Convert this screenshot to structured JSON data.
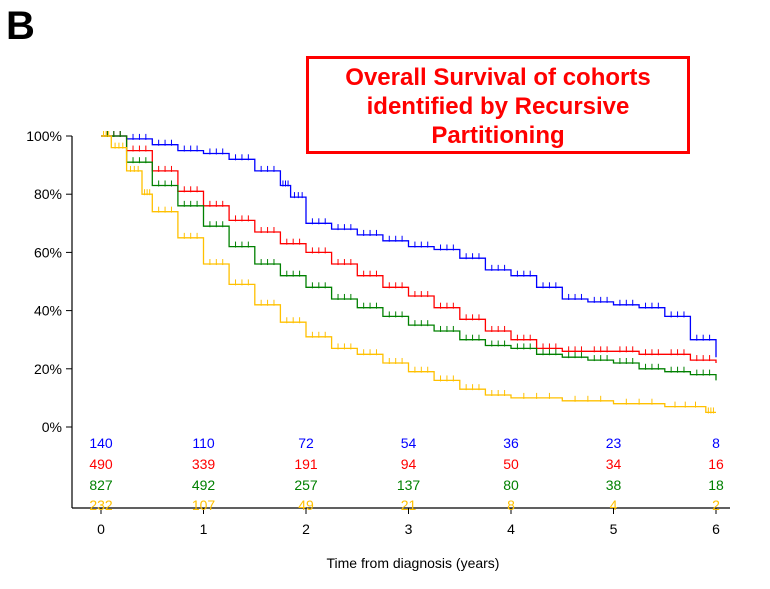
{
  "panel_letter": "B",
  "chart_data": {
    "type": "line",
    "subtype": "kaplan-meier",
    "title_lines": [
      "Overall Survival of cohorts",
      "identified by Recursive",
      "Partitioning"
    ],
    "xlabel": "Time from diagnosis (years)",
    "ylabel": "",
    "xlim": [
      0,
      6
    ],
    "ylim": [
      0,
      100
    ],
    "x_ticks": [
      "0",
      "1",
      "2",
      "3",
      "4",
      "5",
      "6"
    ],
    "y_ticks": [
      "0%",
      "20%",
      "40%",
      "60%",
      "80%",
      "100%"
    ],
    "grid": false,
    "series": [
      {
        "color": "#0000ff",
        "x": [
          0,
          0.25,
          0.5,
          0.75,
          1,
          1.25,
          1.5,
          1.75,
          1.85,
          2,
          2.25,
          2.5,
          2.75,
          3,
          3.25,
          3.5,
          3.75,
          4,
          4.25,
          4.5,
          4.75,
          5,
          5.25,
          5.5,
          5.75,
          6
        ],
        "y": [
          100,
          99,
          97,
          95,
          94,
          92,
          88,
          83,
          79,
          70,
          68,
          66,
          64,
          62,
          61,
          58,
          54,
          52,
          48,
          44,
          43,
          42,
          41,
          38,
          30,
          24
        ],
        "at_risk": [
          "140",
          "110",
          "72",
          "54",
          "36",
          "23",
          "8"
        ]
      },
      {
        "color": "#ff0000",
        "x": [
          0,
          0.25,
          0.5,
          0.75,
          1,
          1.25,
          1.5,
          1.75,
          2,
          2.25,
          2.5,
          2.75,
          3,
          3.25,
          3.5,
          3.75,
          4,
          4.25,
          4.5,
          4.75,
          5,
          5.25,
          5.5,
          5.75,
          6
        ],
        "y": [
          100,
          95,
          88,
          81,
          76,
          71,
          67,
          63,
          60,
          56,
          52,
          48,
          45,
          41,
          37,
          33,
          30,
          27,
          26,
          26,
          26,
          25,
          25,
          23,
          22
        ],
        "at_risk": [
          "490",
          "339",
          "191",
          "94",
          "50",
          "34",
          "16"
        ]
      },
      {
        "color": "#008000",
        "x": [
          0,
          0.25,
          0.5,
          0.75,
          1,
          1.25,
          1.5,
          1.75,
          2,
          2.25,
          2.5,
          2.75,
          3,
          3.25,
          3.5,
          3.75,
          4,
          4.25,
          4.5,
          4.75,
          5,
          5.25,
          5.5,
          5.75,
          6
        ],
        "y": [
          100,
          91,
          83,
          76,
          69,
          62,
          56,
          52,
          48,
          44,
          41,
          38,
          35,
          33,
          30,
          28,
          27,
          25,
          24,
          23,
          22,
          20,
          19,
          18,
          16
        ],
        "at_risk": [
          "827",
          "492",
          "257",
          "137",
          "80",
          "38",
          "18"
        ]
      },
      {
        "color": "#ffc000",
        "x": [
          0,
          0.1,
          0.25,
          0.4,
          0.5,
          0.75,
          1,
          1.25,
          1.5,
          1.75,
          2,
          2.25,
          2.5,
          2.75,
          3,
          3.25,
          3.5,
          3.75,
          4,
          4.5,
          5,
          5.5,
          5.9,
          6
        ],
        "y": [
          100,
          96,
          88,
          80,
          74,
          65,
          56,
          49,
          42,
          36,
          31,
          27,
          25,
          22,
          19,
          16,
          13,
          11,
          10,
          9,
          8,
          7,
          5,
          5
        ],
        "at_risk": [
          "232",
          "107",
          "49",
          "21",
          "8",
          "4",
          "2"
        ]
      }
    ]
  }
}
